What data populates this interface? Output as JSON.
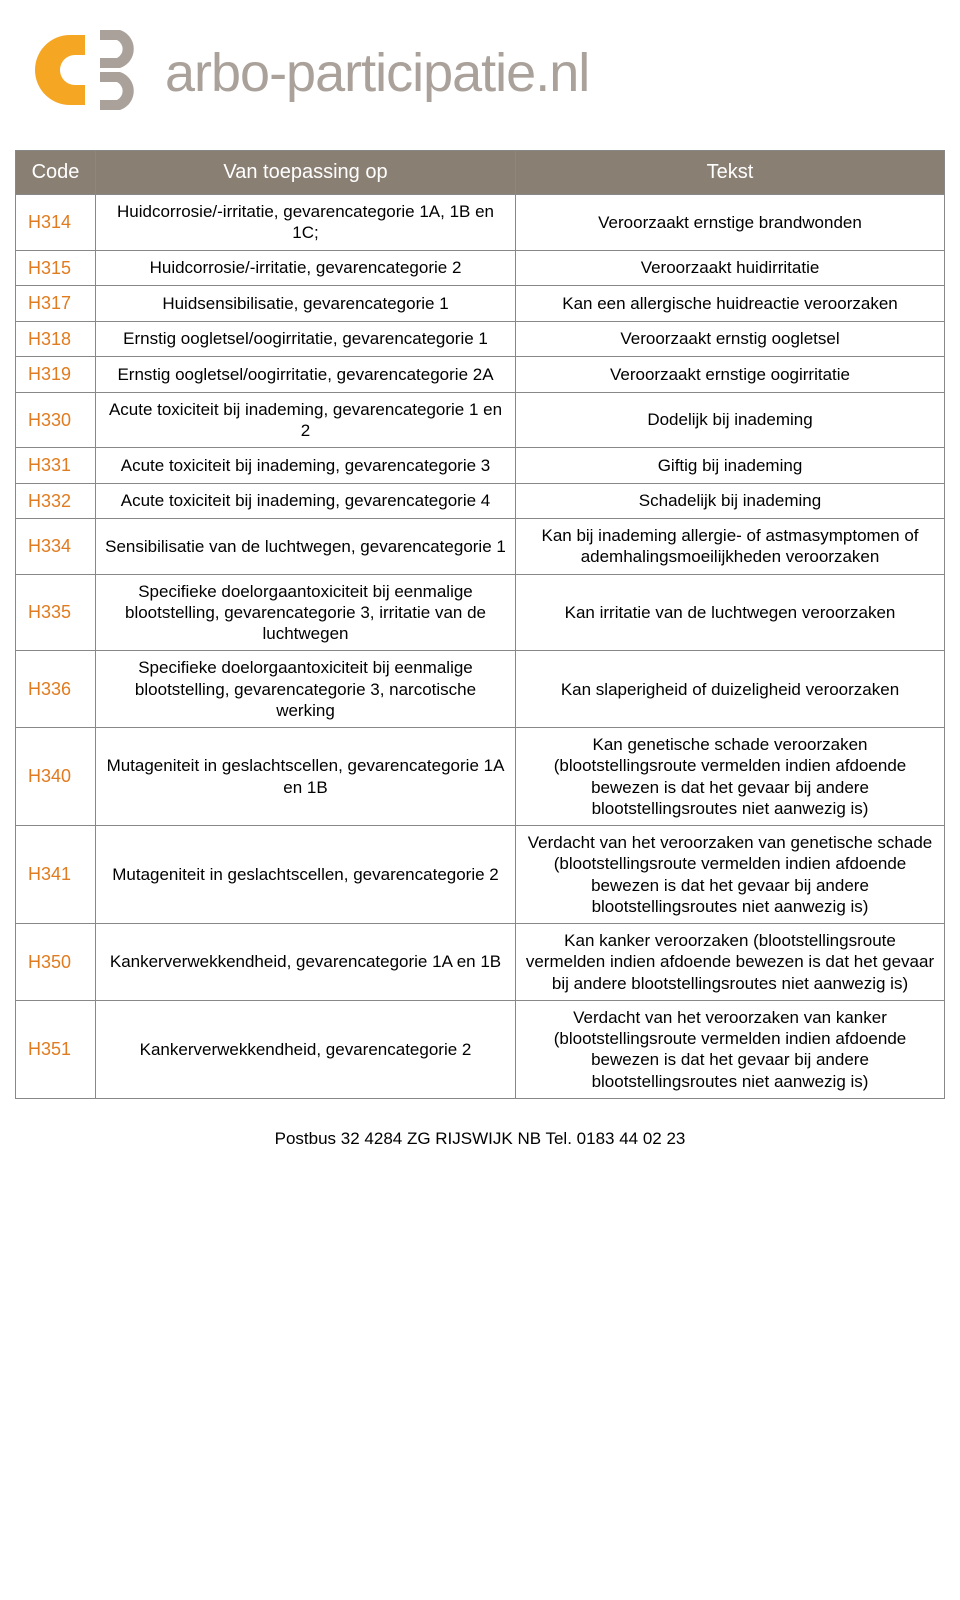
{
  "logo": {
    "text": "arbo-participatie.nl"
  },
  "table": {
    "headers": {
      "code": "Code",
      "van": "Van toepassing op",
      "tekst": "Tekst"
    },
    "rows": [
      {
        "code": "H314",
        "van": "Huidcorrosie/-irritatie,  gevarencategorie 1A, 1B en  1C;",
        "tekst": "Veroorzaakt ernstige brandwonden"
      },
      {
        "code": "H315",
        "van": "Huidcorrosie/-irritatie,  gevarencategorie 2",
        "tekst": "Veroorzaakt huidirritatie"
      },
      {
        "code": "H317",
        "van": "Huidsensibilisatie,  gevarencategorie 1",
        "tekst": "Kan een allergische huidreactie veroorzaken"
      },
      {
        "code": "H318",
        "van": "Ernstig oogletsel/oogirritatie,  gevarencategorie 1",
        "tekst": "Veroorzaakt ernstig oogletsel"
      },
      {
        "code": "H319",
        "van": "Ernstig oogletsel/oogirritatie,  gevarencategorie 2A",
        "tekst": "Veroorzaakt ernstige oogirritatie"
      },
      {
        "code": "H330",
        "van": "Acute toxiciteit bij inademing,  gevarencategorie 1 en 2",
        "tekst": "Dodelijk bij inademing"
      },
      {
        "code": "H331",
        "van": "Acute toxiciteit bij inademing,  gevarencategorie 3",
        "tekst": "Giftig bij inademing"
      },
      {
        "code": "H332",
        "van": "Acute toxiciteit bij inademing,  gevarencategorie 4",
        "tekst": "Schadelijk bij inademing"
      },
      {
        "code": "H334",
        "van": "Sensibilisatie van de  luchtwegen,  gevarencategorie  1",
        "tekst": "Kan bij inademing allergie- of  astmasymptomen of  ademhalingsmoeilijkheden veroorzaken"
      },
      {
        "code": "H335",
        "van": "Specifieke doelorgaantoxiciteit  bij eenmalige blootstelling,  gevarencategorie 3,  irritatie  van de luchtwegen",
        "tekst": "Kan irritatie van de luchtwegen veroorzaken"
      },
      {
        "code": "H336",
        "van": "Specifieke doelorgaantoxiciteit  bij eenmalige blootstelling,  gevarencategorie 3,  narcotische werking",
        "tekst": "Kan slaperigheid of duizeligheid veroorzaken"
      },
      {
        "code": "H340",
        "van": "Mutageniteit in geslachtscellen,  gevarencategorie 1A en 1B",
        "tekst": "Kan genetische schade veroorzaken  (blootstellingsroute vermelden indien afdoende  bewezen is dat het gevaar bij andere  blootstellingsroutes niet aanwezig is)"
      },
      {
        "code": "H341",
        "van": "Mutageniteit in geslachtscellen,  gevarencategorie 2",
        "tekst": "Verdacht van het veroorzaken van genetische  schade (blootstellingsroute vermelden indien  afdoende bewezen is dat het gevaar bij andere  blootstellingsroutes niet aanwezig is)"
      },
      {
        "code": "H350",
        "van": "Kankerverwekkendheid,  gevarencategorie 1A en 1B",
        "tekst": "Kan kanker veroorzaken (blootstellingsroute  vermelden indien afdoende bewezen is dat het  gevaar bij andere blootstellingsroutes niet  aanwezig is)"
      },
      {
        "code": "H351",
        "van": "Kankerverwekkendheid,  gevarencategorie 2",
        "tekst": "Verdacht van het veroorzaken van kanker  (blootstellingsroute vermelden indien afdoende  bewezen is dat het gevaar bij andere  blootstellingsroutes niet aanwezig is)"
      }
    ]
  },
  "footer": {
    "text": "Postbus 32 4284 ZG RIJSWIJK NB Tel. 0183 44 02 23"
  },
  "colors": {
    "header_bg": "#8a7f73",
    "header_text": "#ffffff",
    "code_text": "#e07b1f",
    "border": "#888888",
    "logo_text": "#a9a19a",
    "logo_orange": "#f5a623",
    "logo_grey": "#a9a19a"
  }
}
